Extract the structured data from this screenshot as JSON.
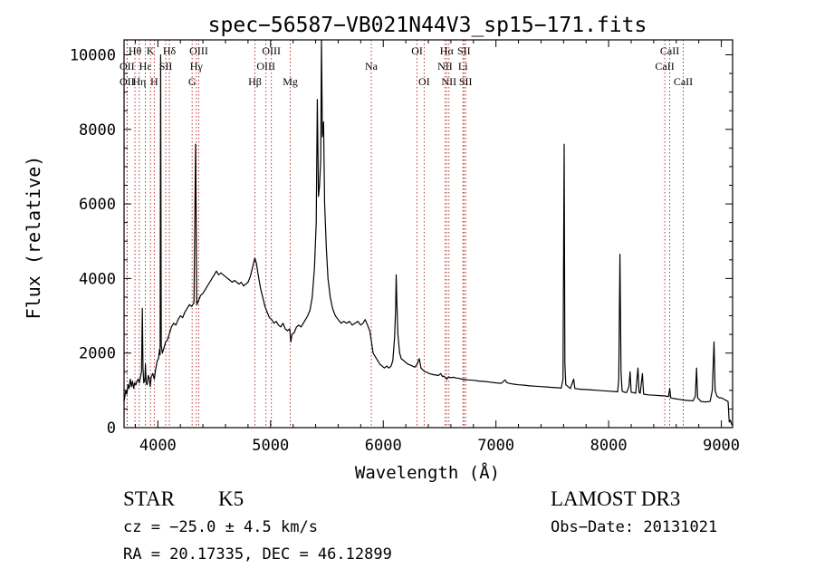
{
  "chart_data": {
    "type": "line",
    "title": "spec−56587−VB021N44V3_sp15−171.fits",
    "xlabel": "Wavelength (Å)",
    "ylabel": "Flux (relative)",
    "xlim": [
      3700,
      9100
    ],
    "ylim": [
      0,
      10400
    ],
    "xticks": [
      4000,
      5000,
      6000,
      7000,
      8000,
      9000
    ],
    "yticks": [
      0,
      2000,
      4000,
      6000,
      8000,
      10000
    ],
    "line_color": "#000000",
    "marker_color": "#b22222",
    "series": [
      {
        "name": "flux",
        "points": [
          [
            3700,
            700
          ],
          [
            3715,
            1000
          ],
          [
            3725,
            900
          ],
          [
            3735,
            1150
          ],
          [
            3745,
            1050
          ],
          [
            3755,
            1300
          ],
          [
            3765,
            1100
          ],
          [
            3775,
            1250
          ],
          [
            3785,
            1050
          ],
          [
            3795,
            1200
          ],
          [
            3805,
            1150
          ],
          [
            3815,
            1250
          ],
          [
            3825,
            1300
          ],
          [
            3835,
            1200
          ],
          [
            3845,
            1350
          ],
          [
            3855,
            1500
          ],
          [
            3862,
            3200
          ],
          [
            3868,
            1600
          ],
          [
            3875,
            1200
          ],
          [
            3885,
            1300
          ],
          [
            3890,
            1700
          ],
          [
            3896,
            1200
          ],
          [
            3905,
            1150
          ],
          [
            3915,
            1400
          ],
          [
            3925,
            1300
          ],
          [
            3932,
            1100
          ],
          [
            3940,
            1350
          ],
          [
            3955,
            1450
          ],
          [
            3968,
            1300
          ],
          [
            3980,
            1550
          ],
          [
            3995,
            1800
          ],
          [
            4005,
            1850
          ],
          [
            4015,
            2100
          ],
          [
            4020,
            1950
          ],
          [
            4025,
            10000
          ],
          [
            4030,
            2200
          ],
          [
            4040,
            2000
          ],
          [
            4050,
            2100
          ],
          [
            4060,
            2200
          ],
          [
            4070,
            2300
          ],
          [
            4085,
            2350
          ],
          [
            4100,
            2500
          ],
          [
            4120,
            2700
          ],
          [
            4140,
            2800
          ],
          [
            4160,
            2750
          ],
          [
            4180,
            2900
          ],
          [
            4200,
            3000
          ],
          [
            4220,
            2950
          ],
          [
            4240,
            3100
          ],
          [
            4260,
            3200
          ],
          [
            4280,
            3300
          ],
          [
            4300,
            3250
          ],
          [
            4320,
            3350
          ],
          [
            4335,
            7600
          ],
          [
            4345,
            3300
          ],
          [
            4360,
            3400
          ],
          [
            4380,
            3550
          ],
          [
            4400,
            3600
          ],
          [
            4420,
            3700
          ],
          [
            4440,
            3800
          ],
          [
            4460,
            3900
          ],
          [
            4480,
            4000
          ],
          [
            4500,
            4100
          ],
          [
            4520,
            4200
          ],
          [
            4540,
            4100
          ],
          [
            4560,
            4150
          ],
          [
            4580,
            4100
          ],
          [
            4600,
            4050
          ],
          [
            4620,
            4000
          ],
          [
            4640,
            3950
          ],
          [
            4660,
            3900
          ],
          [
            4680,
            3950
          ],
          [
            4700,
            3900
          ],
          [
            4720,
            3850
          ],
          [
            4740,
            3900
          ],
          [
            4760,
            3800
          ],
          [
            4780,
            3850
          ],
          [
            4800,
            3900
          ],
          [
            4820,
            4050
          ],
          [
            4840,
            4300
          ],
          [
            4860,
            4550
          ],
          [
            4875,
            4400
          ],
          [
            4890,
            4100
          ],
          [
            4910,
            3750
          ],
          [
            4930,
            3500
          ],
          [
            4950,
            3250
          ],
          [
            4970,
            3100
          ],
          [
            4990,
            2950
          ],
          [
            5010,
            2900
          ],
          [
            5030,
            2800
          ],
          [
            5050,
            2850
          ],
          [
            5070,
            2750
          ],
          [
            5090,
            2700
          ],
          [
            5110,
            2800
          ],
          [
            5130,
            2650
          ],
          [
            5150,
            2600
          ],
          [
            5170,
            2650
          ],
          [
            5180,
            2300
          ],
          [
            5190,
            2500
          ],
          [
            5210,
            2550
          ],
          [
            5230,
            2700
          ],
          [
            5250,
            2750
          ],
          [
            5270,
            2700
          ],
          [
            5290,
            2800
          ],
          [
            5310,
            2900
          ],
          [
            5330,
            3000
          ],
          [
            5350,
            3150
          ],
          [
            5370,
            3500
          ],
          [
            5390,
            4300
          ],
          [
            5405,
            5500
          ],
          [
            5415,
            8800
          ],
          [
            5425,
            6200
          ],
          [
            5435,
            6500
          ],
          [
            5445,
            7200
          ],
          [
            5452,
            10400
          ],
          [
            5460,
            7800
          ],
          [
            5470,
            8200
          ],
          [
            5480,
            6000
          ],
          [
            5495,
            4800
          ],
          [
            5510,
            4000
          ],
          [
            5530,
            3500
          ],
          [
            5550,
            3200
          ],
          [
            5575,
            3000
          ],
          [
            5600,
            2900
          ],
          [
            5625,
            2800
          ],
          [
            5650,
            2850
          ],
          [
            5675,
            2800
          ],
          [
            5700,
            2850
          ],
          [
            5725,
            2750
          ],
          [
            5750,
            2800
          ],
          [
            5775,
            2850
          ],
          [
            5800,
            2750
          ],
          [
            5820,
            2800
          ],
          [
            5840,
            2900
          ],
          [
            5860,
            2750
          ],
          [
            5880,
            2600
          ],
          [
            5895,
            2300
          ],
          [
            5910,
            2000
          ],
          [
            5930,
            1900
          ],
          [
            5950,
            1800
          ],
          [
            5970,
            1700
          ],
          [
            5990,
            1650
          ],
          [
            6010,
            1600
          ],
          [
            6030,
            1650
          ],
          [
            6050,
            1600
          ],
          [
            6070,
            1650
          ],
          [
            6085,
            1800
          ],
          [
            6100,
            2400
          ],
          [
            6110,
            3200
          ],
          [
            6115,
            4100
          ],
          [
            6120,
            3400
          ],
          [
            6130,
            2500
          ],
          [
            6145,
            2000
          ],
          [
            6160,
            1850
          ],
          [
            6180,
            1800
          ],
          [
            6200,
            1750
          ],
          [
            6220,
            1700
          ],
          [
            6240,
            1680
          ],
          [
            6260,
            1650
          ],
          [
            6280,
            1620
          ],
          [
            6300,
            1700
          ],
          [
            6320,
            1850
          ],
          [
            6335,
            1600
          ],
          [
            6350,
            1550
          ],
          [
            6370,
            1500
          ],
          [
            6390,
            1480
          ],
          [
            6410,
            1450
          ],
          [
            6430,
            1430
          ],
          [
            6450,
            1420
          ],
          [
            6470,
            1410
          ],
          [
            6490,
            1400
          ],
          [
            6510,
            1450
          ],
          [
            6525,
            1370
          ],
          [
            6540,
            1380
          ],
          [
            6563,
            1300
          ],
          [
            6580,
            1360
          ],
          [
            6600,
            1340
          ],
          [
            6625,
            1350
          ],
          [
            6650,
            1330
          ],
          [
            6675,
            1320
          ],
          [
            6700,
            1300
          ],
          [
            6725,
            1290
          ],
          [
            6750,
            1280
          ],
          [
            6800,
            1270
          ],
          [
            6850,
            1250
          ],
          [
            6900,
            1240
          ],
          [
            6950,
            1220
          ],
          [
            7000,
            1200
          ],
          [
            7050,
            1190
          ],
          [
            7080,
            1280
          ],
          [
            7100,
            1200
          ],
          [
            7150,
            1170
          ],
          [
            7200,
            1150
          ],
          [
            7250,
            1140
          ],
          [
            7300,
            1120
          ],
          [
            7350,
            1110
          ],
          [
            7400,
            1100
          ],
          [
            7450,
            1090
          ],
          [
            7500,
            1080
          ],
          [
            7550,
            1070
          ],
          [
            7580,
            1060
          ],
          [
            7595,
            1300
          ],
          [
            7605,
            7600
          ],
          [
            7612,
            1700
          ],
          [
            7620,
            1150
          ],
          [
            7640,
            1100
          ],
          [
            7660,
            1050
          ],
          [
            7690,
            1300
          ],
          [
            7700,
            1050
          ],
          [
            7750,
            1030
          ],
          [
            7800,
            1020
          ],
          [
            7850,
            1010
          ],
          [
            7900,
            1000
          ],
          [
            7950,
            990
          ],
          [
            8000,
            980
          ],
          [
            8050,
            970
          ],
          [
            8080,
            960
          ],
          [
            8090,
            1300
          ],
          [
            8100,
            4650
          ],
          [
            8110,
            1500
          ],
          [
            8120,
            980
          ],
          [
            8140,
            950
          ],
          [
            8160,
            940
          ],
          [
            8180,
            1100
          ],
          [
            8190,
            1500
          ],
          [
            8200,
            950
          ],
          [
            8220,
            940
          ],
          [
            8240,
            920
          ],
          [
            8260,
            1600
          ],
          [
            8270,
            950
          ],
          [
            8280,
            920
          ],
          [
            8300,
            1450
          ],
          [
            8310,
            900
          ],
          [
            8350,
            880
          ],
          [
            8400,
            870
          ],
          [
            8450,
            860
          ],
          [
            8500,
            850
          ],
          [
            8530,
            830
          ],
          [
            8542,
            1050
          ],
          [
            8550,
            800
          ],
          [
            8580,
            780
          ],
          [
            8620,
            760
          ],
          [
            8662,
            740
          ],
          [
            8700,
            730
          ],
          [
            8750,
            720
          ],
          [
            8770,
            850
          ],
          [
            8780,
            1600
          ],
          [
            8790,
            800
          ],
          [
            8820,
            700
          ],
          [
            8860,
            690
          ],
          [
            8900,
            700
          ],
          [
            8920,
            1000
          ],
          [
            8935,
            2300
          ],
          [
            8945,
            1000
          ],
          [
            8960,
            850
          ],
          [
            8980,
            800
          ],
          [
            9000,
            800
          ],
          [
            9030,
            750
          ],
          [
            9060,
            700
          ],
          [
            9070,
            150
          ],
          [
            9080,
            200
          ],
          [
            9090,
            100
          ],
          [
            9100,
            50
          ]
        ]
      }
    ],
    "line_markers": [
      {
        "label": "Hθ",
        "x": 3797,
        "row": 0
      },
      {
        "label": "OII",
        "x": 3727,
        "row": 1
      },
      {
        "label": "OII",
        "x": 3727,
        "row": 2
      },
      {
        "label": "Hη",
        "x": 3835,
        "row": 2
      },
      {
        "label": "Hε",
        "x": 3889,
        "row": 1
      },
      {
        "label": "K",
        "x": 3934,
        "row": 0
      },
      {
        "label": "H",
        "x": 3968,
        "row": 2
      },
      {
        "label": "SII",
        "x": 4070,
        "row": 1
      },
      {
        "label": "Hδ",
        "x": 4102,
        "row": 0
      },
      {
        "label": "G",
        "x": 4304,
        "row": 2
      },
      {
        "label": "Hγ",
        "x": 4341,
        "row": 1
      },
      {
        "label": "OIII",
        "x": 4363,
        "row": 0
      },
      {
        "label": "Hβ",
        "x": 4861,
        "row": 2
      },
      {
        "label": "OIII",
        "x": 4959,
        "row": 1
      },
      {
        "label": "OIII",
        "x": 5007,
        "row": 0
      },
      {
        "label": "Mg",
        "x": 5175,
        "row": 2
      },
      {
        "label": "Na",
        "x": 5894,
        "row": 1
      },
      {
        "label": "OI",
        "x": 6300,
        "row": 0
      },
      {
        "label": "OI",
        "x": 6363,
        "row": 2
      },
      {
        "label": "NII",
        "x": 6548,
        "row": 1
      },
      {
        "label": "Hα",
        "x": 6563,
        "row": 0
      },
      {
        "label": "NII",
        "x": 6583,
        "row": 2
      },
      {
        "label": "Li",
        "x": 6707,
        "row": 1
      },
      {
        "label": "SII",
        "x": 6716,
        "row": 0
      },
      {
        "label": "SII",
        "x": 6731,
        "row": 2
      },
      {
        "label": "CaII",
        "x": 8498,
        "row": 1
      },
      {
        "label": "CaII",
        "x": 8542,
        "row": 0
      },
      {
        "label": "CaII",
        "x": 8662,
        "row": 2
      }
    ]
  },
  "info": {
    "object_class": "STAR",
    "subclass": "K5",
    "redshift": "cz = −25.0 ± 4.5 km/s",
    "coords": "RA =  20.17335, DEC =  46.12899",
    "survey": "LAMOST DR3",
    "obs_date": "Obs−Date: 20131021"
  }
}
